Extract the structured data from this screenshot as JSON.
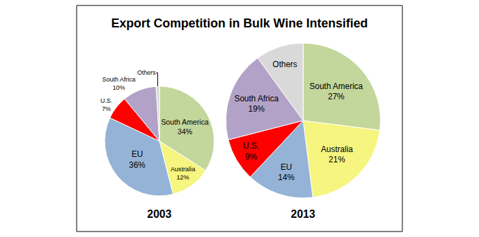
{
  "title": "Export Competition in Bulk Wine Intensified",
  "chart_data": [
    {
      "type": "pie",
      "title": "2003",
      "categories": [
        "South America",
        "Australia",
        "EU",
        "U.S.",
        "South Africa",
        "Others"
      ],
      "values": [
        34,
        12,
        36,
        7,
        10,
        1
      ],
      "value_labels": [
        "34%",
        "12%",
        "36%",
        "7%",
        "10%",
        null
      ],
      "colors": [
        "#c3d69b",
        "#f5f57f",
        "#95b3d7",
        "#ff0000",
        "#b3a2c7",
        "#d9d9d9"
      ],
      "data_labels": true
    },
    {
      "type": "pie",
      "title": "2013",
      "categories": [
        "South America",
        "Australia",
        "EU",
        "U.S.",
        "South Africa",
        "Others"
      ],
      "values": [
        27,
        21,
        14,
        9,
        19,
        10
      ],
      "value_labels": [
        "27%",
        "21%",
        "14%",
        "9%",
        "19%",
        null
      ],
      "colors": [
        "#c3d69b",
        "#f5f57f",
        "#95b3d7",
        "#ff0000",
        "#b3a2c7",
        "#d9d9d9"
      ],
      "data_labels": true
    }
  ]
}
